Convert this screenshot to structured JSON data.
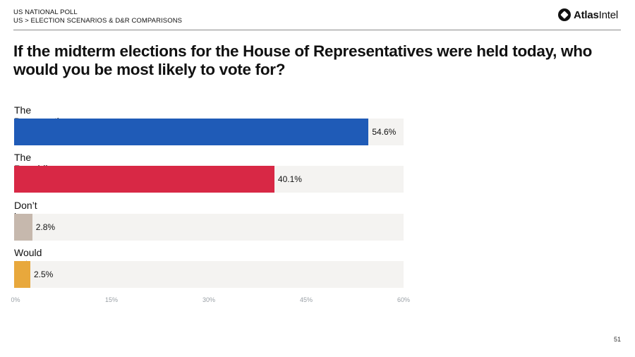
{
  "header": {
    "kicker_line1": "US NATIONAL POLL",
    "kicker_line2": "US > ELECTION SCENARIOS & D&R COMPARISONS",
    "brand_bold": "Atlas",
    "brand_regular": "Intel",
    "logo_icon": "atlasintel-logo-icon"
  },
  "question": "If the midterm elections for the House of Representatives were held today, who would you be most likely to vote for?",
  "chart_data": {
    "type": "bar",
    "orientation": "horizontal",
    "categories": [
      "The Democratic candidate",
      "The Republican candidate",
      "Don’t know",
      "Would not vote"
    ],
    "values": [
      54.6,
      40.1,
      2.8,
      2.5
    ],
    "value_labels": [
      "54.6%",
      "40.1%",
      "2.8%",
      "2.5%"
    ],
    "colors": [
      "#1f5bb7",
      "#d82845",
      "#c6b8ad",
      "#e8a83c"
    ],
    "track_color": "#f4f3f1",
    "xlim": [
      0,
      60
    ],
    "ticks": [
      0,
      15,
      30,
      45,
      60
    ],
    "tick_labels": [
      "0%",
      "15%",
      "30%",
      "45%",
      "60%"
    ],
    "grid": false,
    "legend": "none"
  },
  "footer": {
    "page_number": "51"
  }
}
